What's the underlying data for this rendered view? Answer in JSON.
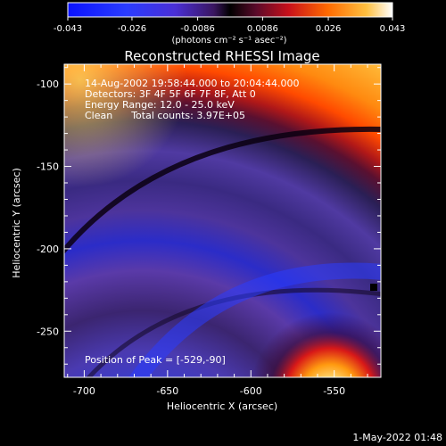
{
  "colorbar": {
    "ticks": [
      "-0.043",
      "-0.026",
      "-0.0086",
      "0.0086",
      "0.026",
      "0.043"
    ],
    "unit_label": "(photons cm⁻² s⁻¹ asec⁻²)"
  },
  "chart_data": {
    "type": "heatmap",
    "title": "Reconstructed RHESSI Image",
    "xlabel": "Heliocentric X (arcsec)",
    "ylabel": "Heliocentric Y (arcsec)",
    "xlim": [
      -712,
      -522
    ],
    "ylim": [
      -278,
      -88
    ],
    "x_ticks": [
      "-700",
      "-650",
      "-600",
      "-550"
    ],
    "y_ticks": [
      "-100",
      "-150",
      "-200",
      "-250"
    ],
    "x_tick_values": [
      -700,
      -650,
      -600,
      -550
    ],
    "y_tick_values": [
      -100,
      -150,
      -200,
      -250
    ],
    "colorscale_range": [
      -0.043,
      0.043
    ],
    "peak_position": [
      -529,
      -90
    ],
    "annotations": {
      "line1": "14-Aug-2002 19:58:44.000 to 20:04:44.000",
      "line2": "Detectors: 3F 4F 5F 6F 7F 8F, Att 0",
      "line3": "Energy Range: 12.0 - 25.0 keV",
      "line4": "Clean      Total counts: 3.97E+05",
      "peak": "Position of Peak = [-529,-90]"
    }
  },
  "footer": {
    "timestamp": "1-May-2022 01:48"
  }
}
